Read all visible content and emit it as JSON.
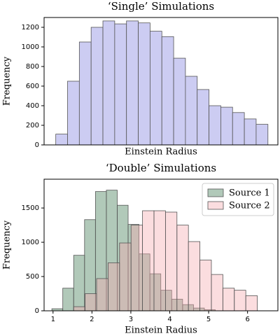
{
  "chart_data": [
    {
      "type": "histogram",
      "title": "‘Single’ Simulations",
      "x_label": "Einstein Radius",
      "y_label": "Frequency",
      "bins": [
        1.07,
        1.373,
        1.676,
        1.979,
        2.282,
        2.585,
        2.888,
        3.191,
        3.494,
        3.797,
        4.1,
        4.403,
        4.706,
        5.009,
        5.312,
        5.615,
        5.918,
        6.221,
        6.524
      ],
      "values": [
        110,
        650,
        1050,
        1200,
        1265,
        1235,
        1265,
        1245,
        1160,
        1105,
        885,
        700,
        565,
        400,
        385,
        330,
        265,
        210
      ],
      "color": "#ccccf2",
      "xlim": [
        0.77,
        6.78
      ],
      "ylim": [
        0,
        1300
      ],
      "yticks": [
        0,
        200,
        400,
        600,
        800,
        1000,
        1200
      ]
    },
    {
      "type": "histogram",
      "title": "‘Double’ Simulations",
      "x_label": "Einstein Radius",
      "y_label": "Frequency",
      "series": [
        {
          "name": "Source 1",
          "color": "rgba(60,120,80,0.4)",
          "bins": [
            0.97,
            1.25,
            1.53,
            1.81,
            2.09,
            2.37,
            2.65,
            2.93,
            3.21,
            3.49,
            3.77,
            4.05,
            4.33,
            4.61,
            4.89,
            5.17
          ],
          "values": [
            30,
            330,
            810,
            1330,
            1740,
            1760,
            1540,
            1260,
            830,
            540,
            300,
            170,
            90,
            40,
            15
          ]
        },
        {
          "name": "Source 2",
          "color": "rgba(245,170,175,0.4)",
          "bins": [
            1.53,
            1.825,
            2.12,
            2.415,
            2.71,
            3.005,
            3.3,
            3.595,
            3.89,
            4.185,
            4.48,
            4.775,
            5.07,
            5.365,
            5.66,
            5.955,
            6.25
          ],
          "values": [
            60,
            250,
            470,
            700,
            990,
            1250,
            1460,
            1460,
            1440,
            1250,
            1010,
            740,
            530,
            330,
            300,
            220
          ]
        }
      ],
      "legend": "upper right",
      "xlim": [
        0.77,
        6.78
      ],
      "xticks": [
        1,
        2,
        3,
        4,
        5,
        6
      ],
      "ylim": [
        0,
        1920
      ],
      "yticks": [
        0,
        500,
        1000,
        1500
      ]
    }
  ]
}
